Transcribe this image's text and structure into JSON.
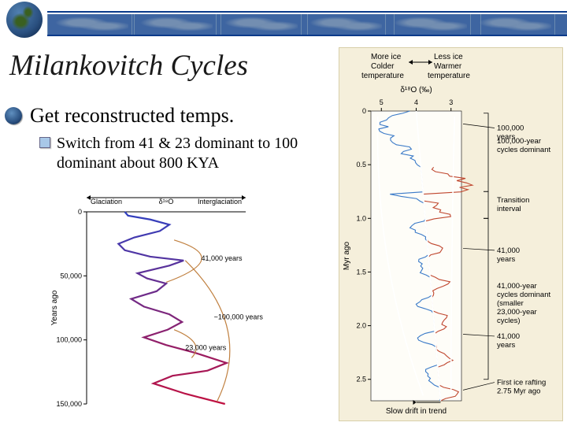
{
  "header": {
    "stripe_color": "#0a3a8a",
    "globe_colors": [
      "#5080b0",
      "#2a5080",
      "#0a2040"
    ]
  },
  "title": "Milankovitch Cycles",
  "bullet": {
    "main": "Get reconstructed temps.",
    "sub": "Switch from 41 & 23 dominant to 100 dominant about 800 KYA"
  },
  "left_fig": {
    "xlabel_left": "Glaciation",
    "xlabel_right": "Interglaciation",
    "xlabel_mid": "δ¹⁸O",
    "ylabel": "Years ago",
    "yticks": [
      0,
      50000,
      100000,
      150000
    ],
    "ytick_labels": [
      "0",
      "50,000",
      "100,000",
      "150,000"
    ],
    "annotations": {
      "a41": "41,000 years",
      "a100": "~100,000 years",
      "a23": "23,000 years"
    },
    "curve_color_top": "#3040c0",
    "curve_color_bot": "#c01040",
    "xrange": [
      0,
      10
    ],
    "curve": [
      [
        2.4,
        0
      ],
      [
        2.6,
        3000
      ],
      [
        4.0,
        6000
      ],
      [
        5.2,
        10000
      ],
      [
        4.6,
        15000
      ],
      [
        3.0,
        20000
      ],
      [
        2.0,
        25000
      ],
      [
        2.4,
        30000
      ],
      [
        4.0,
        35000
      ],
      [
        6.1,
        38000
      ],
      [
        5.2,
        42000
      ],
      [
        3.2,
        48000
      ],
      [
        3.8,
        52000
      ],
      [
        5.0,
        56000
      ],
      [
        4.4,
        62000
      ],
      [
        2.8,
        68000
      ],
      [
        3.6,
        74000
      ],
      [
        5.2,
        80000
      ],
      [
        6.0,
        86000
      ],
      [
        5.1,
        92000
      ],
      [
        3.6,
        98000
      ],
      [
        5.0,
        104000
      ],
      [
        6.8,
        110000
      ],
      [
        8.8,
        118000
      ],
      [
        7.6,
        124000
      ],
      [
        5.4,
        128000
      ],
      [
        4.2,
        134000
      ],
      [
        6.2,
        142000
      ],
      [
        8.7,
        150000
      ]
    ],
    "envelope_color": "#c08040"
  },
  "right_fig": {
    "top_labels": {
      "left_a": "More ice",
      "left_b": "Colder",
      "left_c": "temperature",
      "right_a": "Less ice",
      "right_b": "Warmer",
      "right_c": "temperature",
      "axis_title": "δ¹⁸O (‰)"
    },
    "xticks": [
      "5",
      "4",
      "3"
    ],
    "ylabel": "Myr ago",
    "yticks": [
      0,
      0.5,
      1.0,
      1.5,
      2.0,
      2.5
    ],
    "ytick_labels": [
      "0",
      "0.5",
      "1.0",
      "1.5",
      "2.0",
      "2.5"
    ],
    "right_annotations": [
      {
        "y": 0.18,
        "text": "100,000\nyears",
        "linefrom": 0.12
      },
      {
        "y": 0.3,
        "text": "100,000-year\ncycles dominant",
        "bracket": [
          0.02,
          0.75
        ]
      },
      {
        "y": 0.85,
        "text": "Transition\ninterval",
        "bracket": [
          0.75,
          1.0
        ]
      },
      {
        "y": 1.32,
        "text": "41,000\nyears",
        "linefrom": 1.28
      },
      {
        "y": 1.65,
        "text": "41,000-year\ncycles dominant\n(smaller\n23,000-year\ncycles)",
        "bracket": [
          1.0,
          2.5
        ]
      },
      {
        "y": 2.12,
        "text": "41,000\nyears",
        "linefrom": 2.08
      },
      {
        "y": 2.55,
        "text": "First ice rafting\n2.75 Myr ago",
        "linefrom": 2.6
      }
    ],
    "bottom_label": "Slow drift in trend",
    "blue": "#3a7ac8",
    "red": "#c04830",
    "env_color": "#ffffff",
    "series_rows": 130
  }
}
